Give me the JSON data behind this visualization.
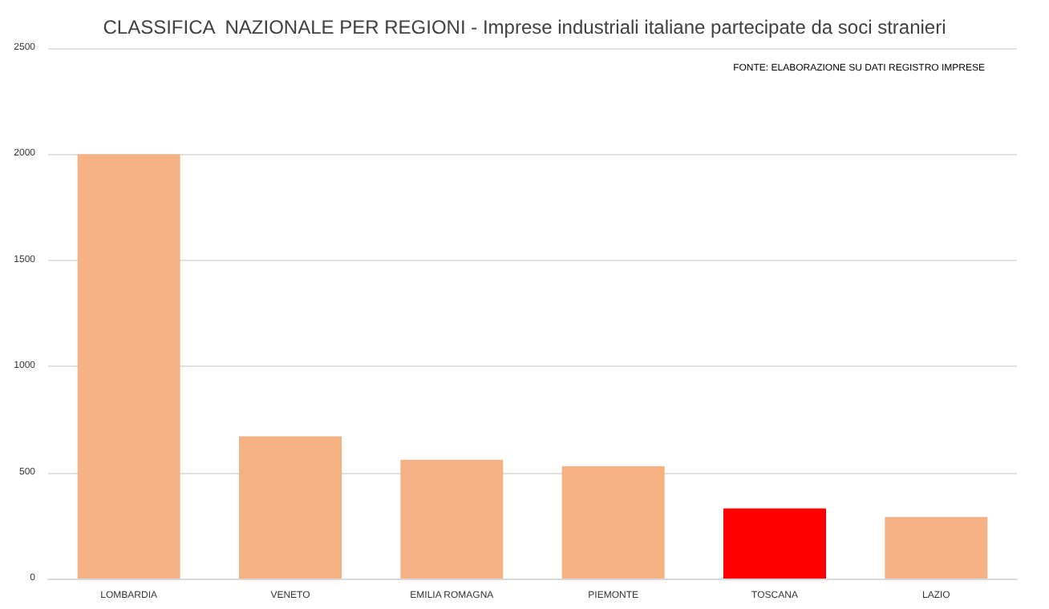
{
  "chart_data": {
    "type": "bar",
    "title": "CLASSIFICA  NAZIONALE PER REGIONI - Imprese industriali italiane partecipate da soci stranieri",
    "annotations": [
      "FONTE: ELABORAZIONE SU DATI REGISTRO IMPRESE"
    ],
    "categories": [
      "LOMBARDIA",
      "VENETO",
      "EMILIA ROMAGNA",
      "PIEMONTE",
      "TOSCANA",
      "LAZIO"
    ],
    "values": [
      2000,
      670,
      560,
      530,
      330,
      290
    ],
    "colors": [
      "#f4b183",
      "#f4b183",
      "#f4b183",
      "#f4b183",
      "#ff0000",
      "#f4b183"
    ],
    "ylim": [
      0,
      2500
    ],
    "yticks": [
      0,
      500,
      1000,
      1500,
      2000,
      2500
    ],
    "grid": "y"
  }
}
